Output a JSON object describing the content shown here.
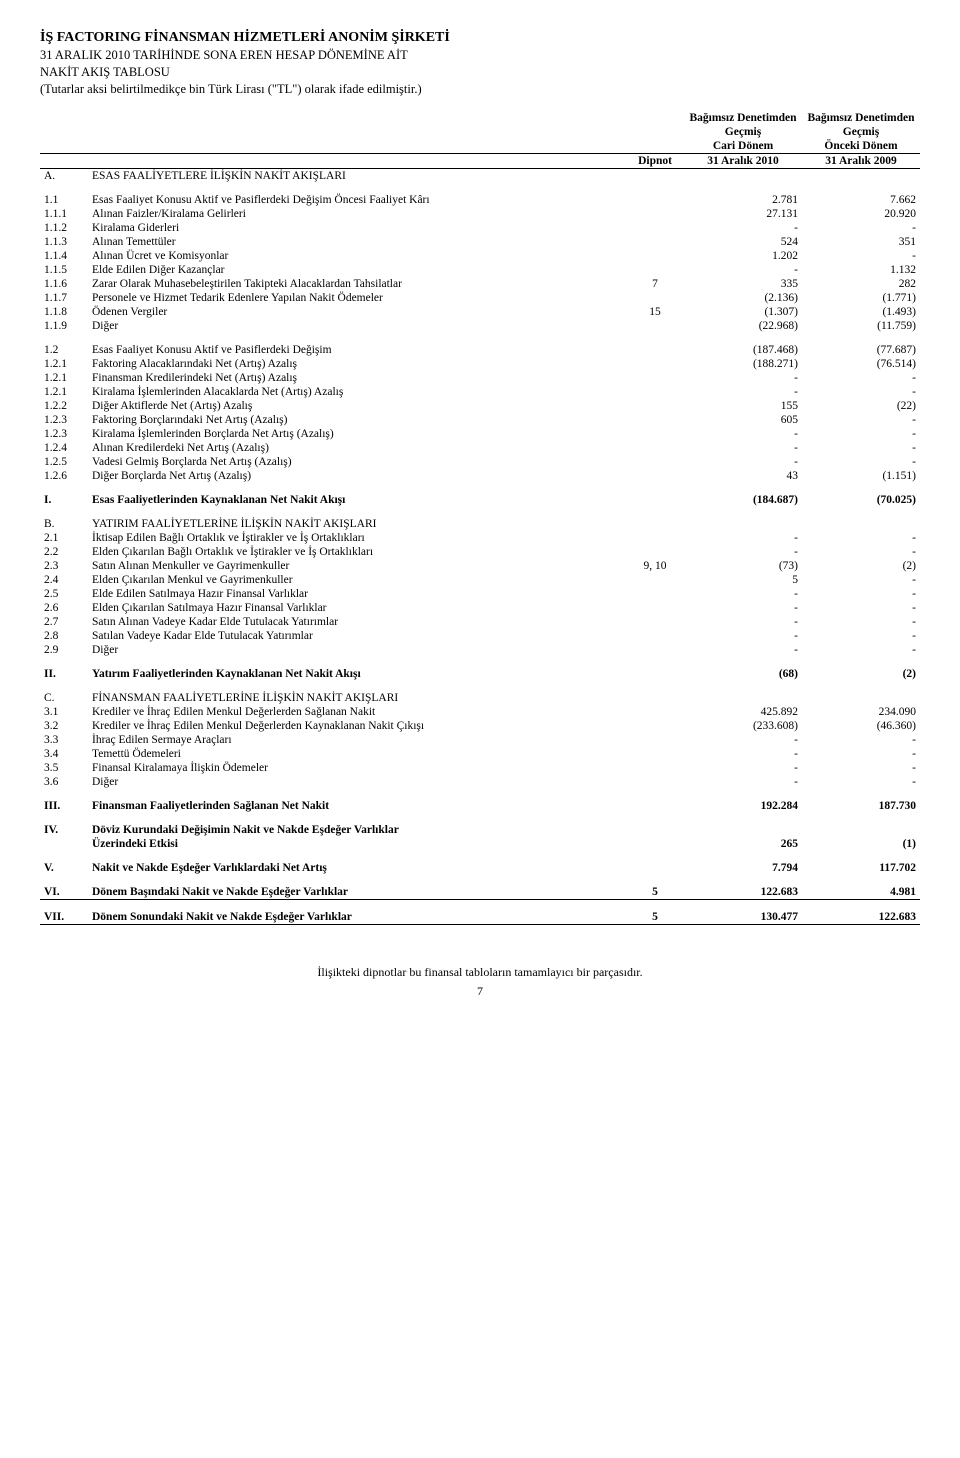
{
  "header": {
    "company": "İŞ FACTORING FİNANSMAN HİZMETLERİ ANONİM ŞİRKETİ",
    "line1": "31 ARALIK 2010 TARİHİNDE SONA EREN HESAP DÖNEMİNE AİT",
    "line2": "NAKİT AKIŞ TABLOSU",
    "line3": "(Tutarlar aksi belirtilmedikçe bin Türk Lirası (\"TL\") olarak ifade edilmiştir.)"
  },
  "columns": {
    "dipnot": "Dipnot",
    "h1a": "Bağımsız Denetimden",
    "h1b": "Geçmiş",
    "h1c": "Cari Dönem",
    "h2a": "Bağımsız Denetimden",
    "h2b": "Geçmiş",
    "h2c": "Önceki Dönem",
    "d1": "31 Aralık 2010",
    "d2": "31 Aralık 2009"
  },
  "sections": [
    {
      "letter": "A.",
      "title": "ESAS FAALİYETLERE İLİŞKİN NAKİT AKIŞLARI"
    }
  ],
  "rows1": [
    {
      "n": "1.1",
      "d": "Esas Faaliyet Konusu Aktif ve Pasiflerdeki Değişim Öncesi Faaliyet Kârı",
      "dip": "",
      "v1": "2.781",
      "v2": "7.662"
    },
    {
      "n": "1.1.1",
      "d": "Alınan Faizler/Kiralama Gelirleri",
      "dip": "",
      "v1": "27.131",
      "v2": "20.920"
    },
    {
      "n": "1.1.2",
      "d": "Kiralama Giderleri",
      "dip": "",
      "v1": "-",
      "v2": "-"
    },
    {
      "n": "1.1.3",
      "d": "Alınan Temettüler",
      "dip": "",
      "v1": "524",
      "v2": "351"
    },
    {
      "n": "1.1.4",
      "d": "Alınan Ücret ve Komisyonlar",
      "dip": "",
      "v1": "1.202",
      "v2": "-"
    },
    {
      "n": "1.1.5",
      "d": "Elde Edilen Diğer Kazançlar",
      "dip": "",
      "v1": "-",
      "v2": "1.132"
    },
    {
      "n": "1.1.6",
      "d": "Zarar Olarak Muhasebeleştirilen Takipteki Alacaklardan Tahsilatlar",
      "dip": "7",
      "v1": "335",
      "v2": "282"
    },
    {
      "n": "1.1.7",
      "d": "Personele ve Hizmet Tedarik Edenlere Yapılan Nakit Ödemeler",
      "dip": "",
      "v1": "(2.136)",
      "v2": "(1.771)"
    },
    {
      "n": "1.1.8",
      "d": "Ödenen Vergiler",
      "dip": "15",
      "v1": "(1.307)",
      "v2": "(1.493)"
    },
    {
      "n": "1.1.9",
      "d": "Diğer",
      "dip": "",
      "v1": "(22.968)",
      "v2": "(11.759)"
    }
  ],
  "rows2": [
    {
      "n": "1.2",
      "d": "Esas Faaliyet Konusu Aktif ve Pasiflerdeki Değişim",
      "dip": "",
      "v1": "(187.468)",
      "v2": "(77.687)"
    },
    {
      "n": "1.2.1",
      "d": "Faktoring Alacaklarındaki Net (Artış) Azalış",
      "dip": "",
      "v1": "(188.271)",
      "v2": "(76.514)"
    },
    {
      "n": "1.2.1",
      "d": "Finansman Kredilerindeki Net (Artış) Azalış",
      "dip": "",
      "v1": "-",
      "v2": "-"
    },
    {
      "n": "1.2.1",
      "d": "Kiralama İşlemlerinden Alacaklarda Net (Artış) Azalış",
      "dip": "",
      "v1": "-",
      "v2": "-"
    },
    {
      "n": "1.2.2",
      "d": "Diğer Aktiflerde Net (Artış) Azalış",
      "dip": "",
      "v1": "155",
      "v2": "(22)"
    },
    {
      "n": "1.2.3",
      "d": "Faktoring Borçlarındaki Net Artış (Azalış)",
      "dip": "",
      "v1": "605",
      "v2": "-"
    },
    {
      "n": "1.2.3",
      "d": "Kiralama İşlemlerinden Borçlarda Net Artış (Azalış)",
      "dip": "",
      "v1": "-",
      "v2": "-"
    },
    {
      "n": "1.2.4",
      "d": "Alınan Kredilerdeki Net Artış (Azalış)",
      "dip": "",
      "v1": "-",
      "v2": "-"
    },
    {
      "n": "1.2.5",
      "d": "Vadesi Gelmiş Borçlarda Net Artış (Azalış)",
      "dip": "",
      "v1": "-",
      "v2": "-"
    },
    {
      "n": "1.2.6",
      "d": "Diğer Borçlarda Net Artış (Azalış)",
      "dip": "",
      "v1": "43",
      "v2": "(1.151)"
    }
  ],
  "total_I": {
    "n": "I.",
    "d": "Esas Faaliyetlerinden Kaynaklanan Net Nakit Akışı",
    "v1": "(184.687)",
    "v2": "(70.025)"
  },
  "section_B": {
    "letter": "B.",
    "title": "YATIRIM FAALİYETLERİNE İLİŞKİN NAKİT AKIŞLARI"
  },
  "rowsB": [
    {
      "n": "2.1",
      "d": "İktisap Edilen Bağlı Ortaklık ve İştirakler ve İş Ortaklıkları",
      "dip": "",
      "v1": "-",
      "v2": "-"
    },
    {
      "n": "2.2",
      "d": "Elden Çıkarılan Bağlı Ortaklık ve İştirakler ve İş Ortaklıkları",
      "dip": "",
      "v1": "-",
      "v2": "-"
    },
    {
      "n": "2.3",
      "d": "Satın Alınan Menkuller ve Gayrimenkuller",
      "dip": "9, 10",
      "v1": "(73)",
      "v2": "(2)"
    },
    {
      "n": "2.4",
      "d": "Elden Çıkarılan Menkul ve Gayrimenkuller",
      "dip": "",
      "v1": "5",
      "v2": "-"
    },
    {
      "n": "2.5",
      "d": "Elde Edilen Satılmaya Hazır Finansal Varlıklar",
      "dip": "",
      "v1": "-",
      "v2": "-"
    },
    {
      "n": "2.6",
      "d": "Elden Çıkarılan Satılmaya Hazır Finansal Varlıklar",
      "dip": "",
      "v1": "-",
      "v2": "-"
    },
    {
      "n": "2.7",
      "d": "Satın Alınan Vadeye Kadar Elde Tutulacak Yatırımlar",
      "dip": "",
      "v1": "-",
      "v2": "-"
    },
    {
      "n": "2.8",
      "d": "Satılan Vadeye Kadar Elde Tutulacak Yatırımlar",
      "dip": "",
      "v1": "-",
      "v2": "-"
    },
    {
      "n": "2.9",
      "d": "Diğer",
      "dip": "",
      "v1": "-",
      "v2": "-"
    }
  ],
  "total_II": {
    "n": "II.",
    "d": "Yatırım Faaliyetlerinden Kaynaklanan Net Nakit Akışı",
    "v1": "(68)",
    "v2": "(2)"
  },
  "section_C": {
    "letter": "C.",
    "title": "FİNANSMAN FAALİYETLERİNE İLİŞKİN NAKİT AKIŞLARI"
  },
  "rowsC": [
    {
      "n": "3.1",
      "d": "Krediler ve İhraç Edilen Menkul Değerlerden Sağlanan Nakit",
      "dip": "",
      "v1": "425.892",
      "v2": "234.090"
    },
    {
      "n": "3.2",
      "d": "Krediler ve İhraç Edilen Menkul Değerlerden Kaynaklanan Nakit Çıkışı",
      "dip": "",
      "v1": "(233.608)",
      "v2": "(46.360)"
    },
    {
      "n": "3.3",
      "d": "İhraç Edilen Sermaye Araçları",
      "dip": "",
      "v1": "-",
      "v2": "-"
    },
    {
      "n": "3.4",
      "d": "Temettü Ödemeleri",
      "dip": "",
      "v1": "-",
      "v2": "-"
    },
    {
      "n": "3.5",
      "d": "Finansal Kiralamaya İlişkin Ödemeler",
      "dip": "",
      "v1": "-",
      "v2": "-"
    },
    {
      "n": "3.6",
      "d": "Diğer",
      "dip": "",
      "v1": "-",
      "v2": "-"
    }
  ],
  "total_III": {
    "n": "III.",
    "d": "Finansman Faaliyetlerinden Sağlanan Net Nakit",
    "v1": "192.284",
    "v2": "187.730"
  },
  "row_IV_1": {
    "n": "IV.",
    "d": "Döviz Kurundaki Değişimin Nakit ve Nakde Eşdeğer Varlıklar"
  },
  "row_IV_2": {
    "d": "Üzerindeki Etkisi",
    "v1": "265",
    "v2": "(1)"
  },
  "row_V": {
    "n": "V.",
    "d": "Nakit ve Nakde Eşdeğer Varlıklardaki Net Artış",
    "v1": "7.794",
    "v2": "117.702"
  },
  "row_VI": {
    "n": "VI.",
    "d": "Dönem Başındaki Nakit ve Nakde Eşdeğer Varlıklar",
    "dip": "5",
    "v1": "122.683",
    "v2": "4.981"
  },
  "row_VII": {
    "n": "VII.",
    "d": "Dönem Sonundaki Nakit ve Nakde Eşdeğer Varlıklar",
    "dip": "5",
    "v1": "130.477",
    "v2": "122.683"
  },
  "footer": {
    "text": "İlişikteki dipnotlar bu finansal tabloların tamamlayıcı bir parçasıdır.",
    "page": "7"
  }
}
